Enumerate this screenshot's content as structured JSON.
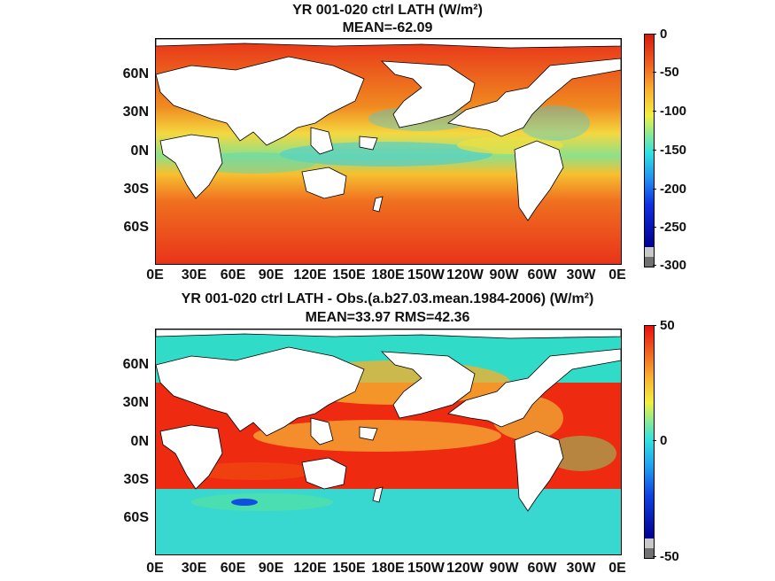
{
  "panels": [
    {
      "title_line1": "YR 001-020 ctrl  LATH (W/m²)",
      "title_line2": "MEAN=-62.09",
      "colorbar": {
        "max_label": "0",
        "ticks": [
          "0",
          "-50",
          "-100",
          "-150",
          "-200",
          "-250",
          "-300"
        ]
      },
      "colors": {
        "high": "#e8341a",
        "mid": "#f0e040",
        "low": "#40d8c8",
        "min": "#1a1aa0"
      }
    },
    {
      "title_line1": "YR 001-020 ctrl LATH - Obs.(a.b27.03.mean.1984-2006) (W/m²)",
      "title_line2": "MEAN=33.97 RMS=42.36",
      "colorbar": {
        "ticks": [
          "50",
          "0",
          "-50"
        ]
      },
      "colors": {
        "high": "#ee2a10",
        "mid": "#f0e040",
        "low": "#38dcc8",
        "min": "#2020c0"
      }
    }
  ],
  "lat_labels": [
    "60N",
    "30N",
    "0N",
    "30S",
    "60S"
  ],
  "lon_labels": [
    "0E",
    "30E",
    "60E",
    "90E",
    "120E",
    "150E",
    "180E",
    "150W",
    "120W",
    "90W",
    "60W",
    "30W",
    "0E"
  ]
}
